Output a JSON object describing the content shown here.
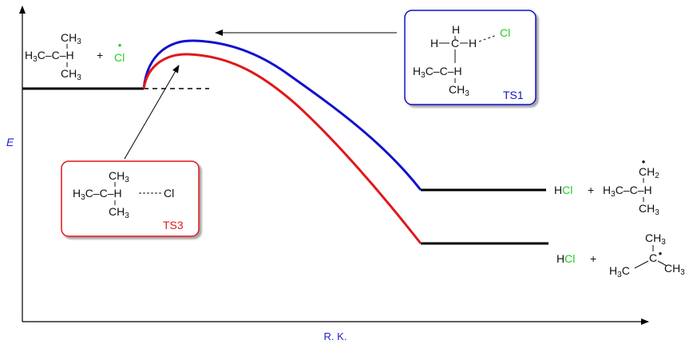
{
  "axes": {
    "y_label": "E",
    "x_label": "R. K.",
    "label_color": "#1f1fd6"
  },
  "colors": {
    "ts1": "#1111cc",
    "ts3": "#e01818",
    "chlorine": "#22cc22",
    "level": "#000000"
  },
  "reactants": {
    "methyl_top": "CH3",
    "carbon_row": "H3C–C–H",
    "methyl_bottom": "CH3",
    "plus": "+",
    "chlorine": "Cl",
    "radical_dot": "•"
  },
  "ts1": {
    "label": "TS1",
    "h_top": "H",
    "h_left": "H",
    "h_mid": "H",
    "dots": "- -",
    "cl": "Cl",
    "left_group": "H3C",
    "c_row": "C",
    "c_h": "H",
    "bottom_group": "CH3"
  },
  "ts3": {
    "label": "TS3",
    "methyl_top": "CH3",
    "left_group": "H3C",
    "c_row": "C",
    "h": "H",
    "cl": "Cl",
    "bottom_group": "CH3"
  },
  "product_primary": {
    "hcl_h": "H",
    "hcl_cl": "Cl",
    "plus": "+",
    "top_group": "CH2",
    "left_group": "H3C",
    "c_row": "C",
    "c_h": "H",
    "bottom_group": "CH3"
  },
  "product_tertiary": {
    "hcl_h": "H",
    "hcl_cl": "Cl",
    "plus": "+",
    "top_group": "CH3",
    "left_group": "H3C",
    "c_center": "C",
    "right_group": "CH3"
  }
}
